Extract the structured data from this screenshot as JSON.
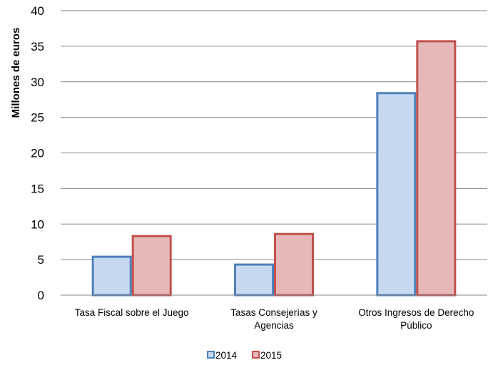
{
  "chart_data": {
    "type": "bar",
    "title": "",
    "xlabel": "",
    "ylabel": "Millones de euros",
    "ylim": [
      0,
      40
    ],
    "yticks": [
      0,
      5,
      10,
      15,
      20,
      25,
      30,
      35,
      40
    ],
    "grid": true,
    "legend_position": "bottom",
    "categories": [
      [
        "Tasa Fiscal sobre el Juego"
      ],
      [
        "Tasas Consejerías y",
        "Agencias"
      ],
      [
        "Otros Ingresos de Derecho",
        "Público"
      ]
    ],
    "series": [
      {
        "name": "2014",
        "values": [
          5.4,
          4.3,
          28.4
        ],
        "fill": "#c6d9f1",
        "stroke": "#4f81bd"
      },
      {
        "name": "2015",
        "values": [
          8.3,
          8.6,
          35.7
        ],
        "fill": "#e6b9b8",
        "stroke": "#c0504d"
      }
    ]
  }
}
